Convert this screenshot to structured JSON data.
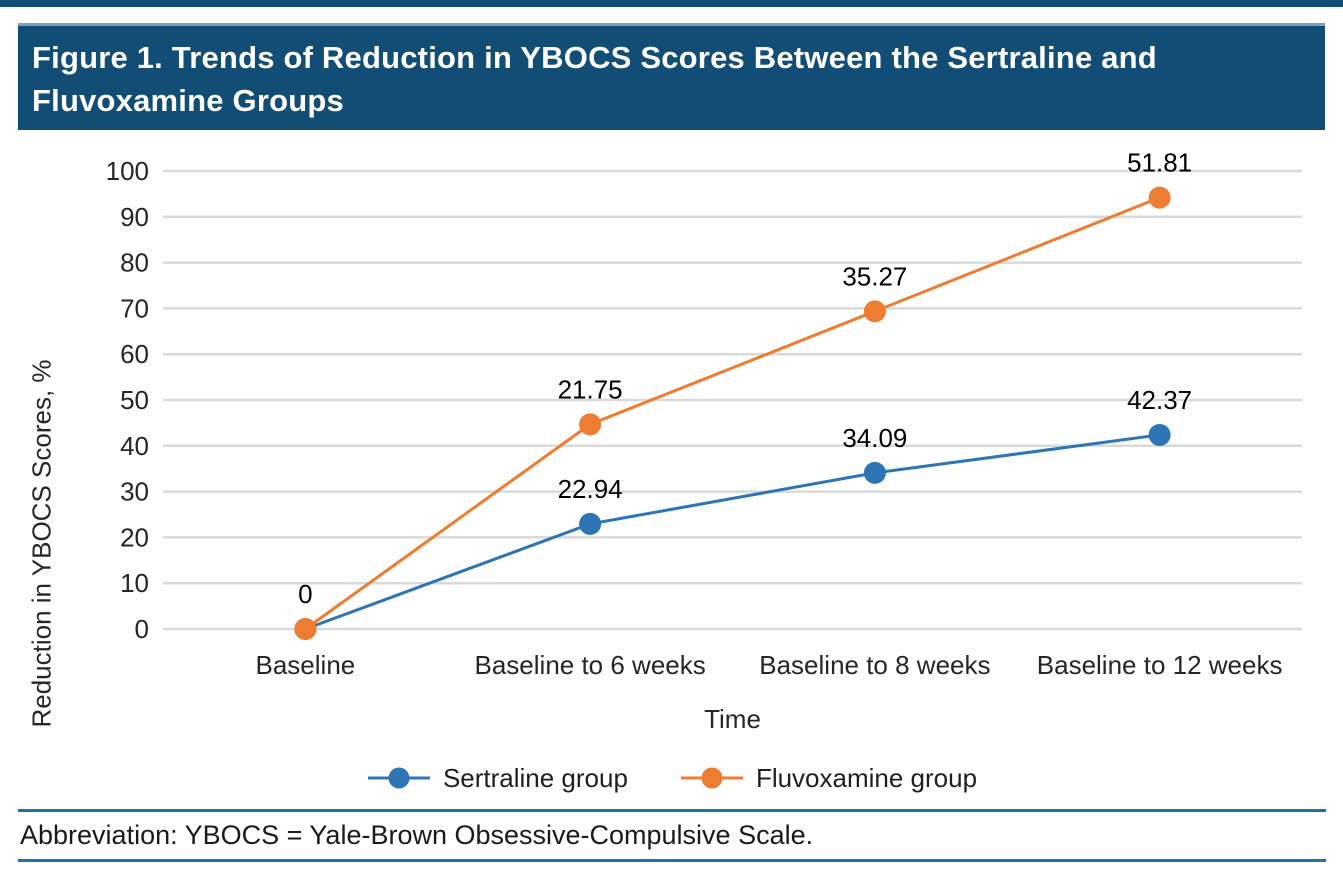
{
  "title_bar": {
    "title": "Figure 1. Trends of Reduction in YBOCS Scores Between the Sertraline and Fluvoxamine Groups"
  },
  "footer": {
    "abbreviation": "Abbreviation: YBOCS = Yale-Brown Obsessive-Compulsive Scale."
  },
  "colors": {
    "banner": "#114d75",
    "banner_top_edge": "#7aa2bf",
    "top_rule": "#114d75",
    "footer_rule": "#2173a3",
    "grid": "#d9d9d9",
    "sertraline": "#2e75b6",
    "fluvoxamine": "#ed7d31",
    "label_text": "#1a1a1a"
  },
  "chart_data": {
    "type": "line",
    "title": "",
    "categories": [
      "Baseline",
      "Baseline to 6 weeks",
      "Baseline to 8 weeks",
      "Baseline to 12 weeks"
    ],
    "series": [
      {
        "name": "Sertraline group",
        "color_key": "sertraline",
        "values": [
          0,
          22.94,
          34.09,
          42.37
        ],
        "labels": [
          "",
          "22.94",
          "34.09",
          "42.37"
        ]
      },
      {
        "name": "Fluvoxamine group",
        "color_key": "fluvoxamine",
        "values": [
          0,
          21.75,
          35.27,
          51.81
        ],
        "labels": [
          "0",
          "21.75",
          "35.27",
          "51.81"
        ]
      }
    ],
    "stacked": true,
    "xlabel": "Time",
    "ylabel": "Reduction in YBOCS Scores, %",
    "ylim": [
      0,
      100
    ],
    "yticks": [
      0,
      10,
      20,
      30,
      40,
      50,
      60,
      70,
      80,
      90,
      100
    ],
    "grid": "horizontal",
    "legend_position": "bottom"
  }
}
